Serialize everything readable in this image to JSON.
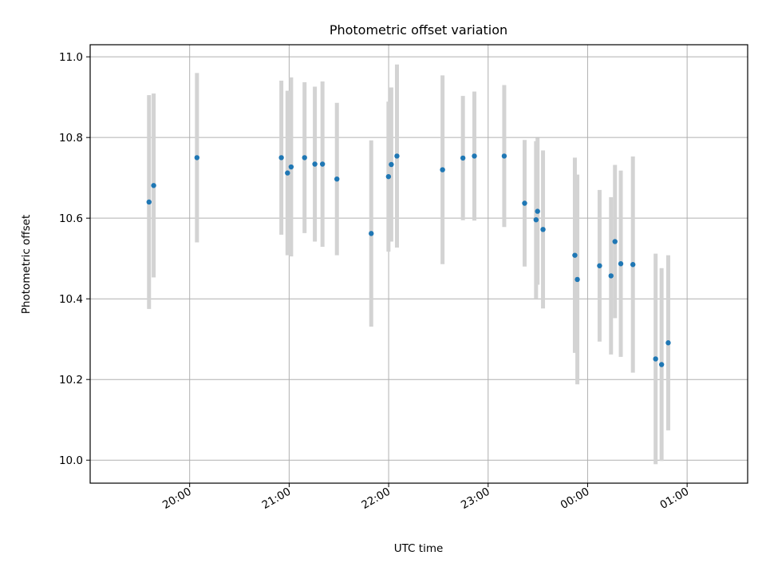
{
  "chart_data": {
    "type": "scatter",
    "title": "Photometric offset variation",
    "xlabel": "UTC time",
    "ylabel": "Photometric offset",
    "x_tick_labels": [
      "20:00",
      "21:00",
      "22:00",
      "23:00",
      "00:00",
      "01:00"
    ],
    "y_tick_labels": [
      "10.0",
      "10.2",
      "10.4",
      "10.6",
      "10.8",
      "11.0"
    ],
    "xlim_minutes_after_19h": [
      0,
      396.5
    ],
    "ylim": [
      9.943,
      11.03
    ],
    "grid": true,
    "marker_color": "#1f77b4",
    "errorbar_color": "#d3d3d3",
    "x_unit": "minutes after 19:00 UTC",
    "points": [
      {
        "x": 35.5,
        "y": 10.64,
        "err": 0.265
      },
      {
        "x": 38.3,
        "y": 10.681,
        "err": 0.228
      },
      {
        "x": 64.4,
        "y": 10.75,
        "err": 0.21
      },
      {
        "x": 115.3,
        "y": 10.75,
        "err": 0.191
      },
      {
        "x": 119.0,
        "y": 10.712,
        "err": 0.204
      },
      {
        "x": 121.2,
        "y": 10.727,
        "err": 0.222
      },
      {
        "x": 129.3,
        "y": 10.75,
        "err": 0.187
      },
      {
        "x": 135.5,
        "y": 10.734,
        "err": 0.192
      },
      {
        "x": 140.1,
        "y": 10.734,
        "err": 0.205
      },
      {
        "x": 148.8,
        "y": 10.697,
        "err": 0.189
      },
      {
        "x": 169.5,
        "y": 10.562,
        "err": 0.231
      },
      {
        "x": 179.9,
        "y": 10.703,
        "err": 0.186
      },
      {
        "x": 181.6,
        "y": 10.733,
        "err": 0.191
      },
      {
        "x": 185.0,
        "y": 10.754,
        "err": 0.227
      },
      {
        "x": 212.5,
        "y": 10.72,
        "err": 0.234
      },
      {
        "x": 224.8,
        "y": 10.749,
        "err": 0.154
      },
      {
        "x": 231.7,
        "y": 10.754,
        "err": 0.16
      },
      {
        "x": 249.7,
        "y": 10.754,
        "err": 0.176
      },
      {
        "x": 262.0,
        "y": 10.637,
        "err": 0.157
      },
      {
        "x": 268.9,
        "y": 10.596,
        "err": 0.195
      },
      {
        "x": 269.8,
        "y": 10.617,
        "err": 0.182
      },
      {
        "x": 273.1,
        "y": 10.572,
        "err": 0.196
      },
      {
        "x": 292.3,
        "y": 10.508,
        "err": 0.242
      },
      {
        "x": 293.8,
        "y": 10.448,
        "err": 0.26
      },
      {
        "x": 307.2,
        "y": 10.482,
        "err": 0.188
      },
      {
        "x": 314.1,
        "y": 10.457,
        "err": 0.195
      },
      {
        "x": 316.5,
        "y": 10.542,
        "err": 0.19
      },
      {
        "x": 320.0,
        "y": 10.487,
        "err": 0.231
      },
      {
        "x": 327.3,
        "y": 10.485,
        "err": 0.268
      },
      {
        "x": 341.0,
        "y": 10.251,
        "err": 0.261
      },
      {
        "x": 344.6,
        "y": 10.237,
        "err": 0.239
      },
      {
        "x": 348.6,
        "y": 10.291,
        "err": 0.217
      }
    ]
  }
}
